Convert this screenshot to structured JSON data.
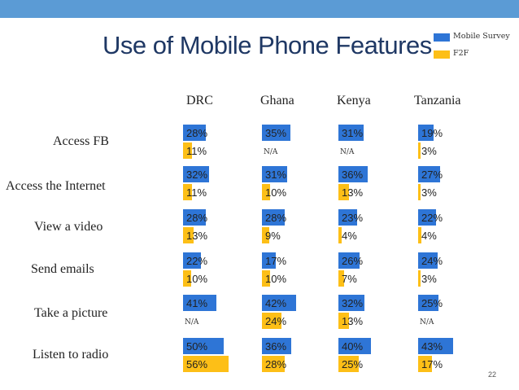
{
  "title": "Use of Mobile Phone Features",
  "page_number": "22",
  "colors": {
    "topbar": "#5b9bd5",
    "mobile": "#2e75d6",
    "f2f": "#fdbf17",
    "title": "#1f3864"
  },
  "chart_data": {
    "type": "bar",
    "title": "Use of Mobile Phone Features",
    "countries": [
      "DRC",
      "Ghana",
      "Kenya",
      "Tanzania"
    ],
    "features": [
      "Access FB",
      "Access the Internet",
      "View a video",
      "Send emails",
      "Take a picture",
      "Listen to radio"
    ],
    "series": [
      {
        "name": "Mobile Survey",
        "values": [
          [
            28,
            35,
            31,
            19
          ],
          [
            32,
            31,
            36,
            27
          ],
          [
            28,
            28,
            23,
            22
          ],
          [
            22,
            17,
            26,
            24
          ],
          [
            41,
            42,
            32,
            25
          ],
          [
            50,
            36,
            40,
            43
          ]
        ]
      },
      {
        "name": "F2F",
        "values": [
          [
            11,
            null,
            null,
            3
          ],
          [
            11,
            10,
            13,
            3
          ],
          [
            13,
            9,
            4,
            4
          ],
          [
            10,
            10,
            7,
            3
          ],
          [
            null,
            24,
            13,
            null
          ],
          [
            56,
            28,
            25,
            17
          ]
        ]
      }
    ],
    "missing_label": "N/A",
    "value_suffix": "%",
    "legend": [
      "Mobile Survey",
      "F2F"
    ],
    "legend_position": "top-right"
  }
}
